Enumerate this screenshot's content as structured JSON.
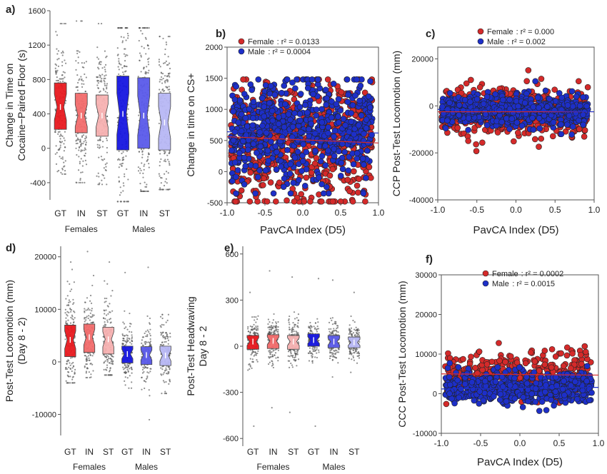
{
  "panel_labels": [
    "a)",
    "b)",
    "c)",
    "d)",
    "e)",
    "f)"
  ],
  "colors": {
    "GT_F": "#e8191f",
    "IN_F": "#f26b6b",
    "ST_F": "#f7b1b1",
    "GT_M": "#1616e0",
    "IN_M": "#5a5aea",
    "ST_M": "#b7b7f4",
    "female_dot": "#d42a2a",
    "male_dot": "#1d2fc8",
    "jitter": "#555555"
  },
  "chart_data": [
    {
      "id": "a",
      "type": "box",
      "ylabel_lines": [
        "Change in Time on",
        "Cocaine−Paired Floor (s)"
      ],
      "ylim": [
        -600,
        1600
      ],
      "yticks": [
        -400,
        0,
        400,
        800,
        1200,
        1600
      ],
      "categories": [
        "GT",
        "IN",
        "ST",
        "GT",
        "IN",
        "ST"
      ],
      "groups": [
        "Females",
        "Males"
      ],
      "boxes": [
        {
          "group": "Females",
          "phenotype": "GT",
          "color_key": "GT_F",
          "q1": 220,
          "median": 480,
          "q3": 760,
          "low": -300,
          "high": 1450,
          "n": 180
        },
        {
          "group": "Females",
          "phenotype": "IN",
          "color_key": "IN_F",
          "q1": 180,
          "median": 380,
          "q3": 640,
          "low": -400,
          "high": 1480,
          "n": 180
        },
        {
          "group": "Females",
          "phenotype": "ST",
          "color_key": "ST_F",
          "q1": 140,
          "median": 380,
          "q3": 620,
          "low": -420,
          "high": 1450,
          "n": 180
        },
        {
          "group": "Males",
          "phenotype": "GT",
          "color_key": "GT_M",
          "q1": -20,
          "median": 400,
          "q3": 840,
          "low": -620,
          "high": 1400,
          "n": 180
        },
        {
          "group": "Males",
          "phenotype": "IN",
          "color_key": "IN_M",
          "q1": 0,
          "median": 380,
          "q3": 820,
          "low": -500,
          "high": 1400,
          "n": 180
        },
        {
          "group": "Males",
          "phenotype": "ST",
          "color_key": "ST_M",
          "q1": -20,
          "median": 300,
          "q3": 640,
          "low": -480,
          "high": 1300,
          "n": 180
        }
      ]
    },
    {
      "id": "b",
      "type": "scatter",
      "xlabel": "PavCA Index (D5)",
      "ylabel": "Change in time on CS+",
      "xlim": [
        -1.0,
        1.0
      ],
      "ylim": [
        -500,
        2000
      ],
      "xticks": [
        -1.0,
        -0.5,
        0.0,
        0.5,
        1.0
      ],
      "xtick_labels": [
        "-1.0",
        "-0.5",
        "0.0",
        "0.5",
        "1.0"
      ],
      "yticks": [
        -500,
        0,
        500,
        1000,
        1500,
        2000
      ],
      "legend": [
        {
          "name": "Female",
          "r2_text": "r² = 0.0133",
          "color_key": "female_dot"
        },
        {
          "name": "Male",
          "r2_text": "r² = 0.0004",
          "color_key": "male_dot"
        }
      ],
      "legend_position": "top-left",
      "series": [
        {
          "name": "Female",
          "color_key": "female_dot",
          "n": 620,
          "y_center": 450,
          "y_spread": 900,
          "y_min": -480,
          "y_max": 1480,
          "fit": [
            [
              -1.0,
              560
            ],
            [
              1.0,
              460
            ]
          ]
        },
        {
          "name": "Male",
          "color_key": "male_dot",
          "n": 640,
          "y_center": 640,
          "y_spread": 760,
          "y_min": -350,
          "y_max": 1480,
          "fit": [
            [
              -1.0,
              640
            ],
            [
              1.0,
              620
            ]
          ]
        }
      ]
    },
    {
      "id": "c",
      "type": "scatter",
      "xlabel": "PavCA Index (D5)",
      "ylabel": "CCP Post-Test Locomotion (mm)",
      "xlim": [
        -1.0,
        1.0
      ],
      "ylim": [
        -40000,
        25000
      ],
      "xticks": [
        -1.0,
        -0.5,
        0.0,
        0.5,
        1.0
      ],
      "xtick_labels": [
        "-1.0",
        "-0.5",
        "0.0",
        "0.5",
        "1.0"
      ],
      "yticks": [
        -40000,
        -20000,
        0,
        20000
      ],
      "ytick_labels": [
        "-40000",
        "-20000",
        "0",
        "20000"
      ],
      "legend": [
        {
          "name": "Female",
          "r2_text": "r² = 0.000",
          "color_key": "female_dot"
        },
        {
          "name": "Male",
          "r2_text": "r² = 0.002",
          "color_key": "male_dot"
        }
      ],
      "legend_position": "top-left",
      "series": [
        {
          "name": "Female",
          "color_key": "female_dot",
          "n": 560,
          "y_center": -2500,
          "y_spread": 9000,
          "y_min": -36000,
          "y_max": 18000,
          "fit": [
            [
              -1.0,
              -2500
            ],
            [
              1.0,
              -2500
            ]
          ]
        },
        {
          "name": "Male",
          "color_key": "male_dot",
          "n": 620,
          "y_center": -2000,
          "y_spread": 6000,
          "y_min": -24000,
          "y_max": 17000,
          "fit": [
            [
              -1.0,
              -1500
            ],
            [
              1.0,
              -2500
            ]
          ]
        }
      ]
    },
    {
      "id": "d",
      "type": "box",
      "ylabel_lines": [
        "Post-Test Locomotion (mm)",
        "(Day 8 - 2)"
      ],
      "ylim": [
        -14000,
        22000
      ],
      "yticks": [
        -10000,
        0,
        10000,
        20000
      ],
      "categories": [
        "GT",
        "IN",
        "ST",
        "GT",
        "IN",
        "ST"
      ],
      "groups": [
        "Females",
        "Males"
      ],
      "boxes": [
        {
          "group": "Females",
          "phenotype": "GT",
          "color_key": "GT_F",
          "q1": 1000,
          "median": 4200,
          "q3": 7000,
          "low": -4000,
          "high": 19000,
          "n": 160
        },
        {
          "group": "Females",
          "phenotype": "IN",
          "color_key": "IN_F",
          "q1": 1800,
          "median": 4700,
          "q3": 7200,
          "low": -3000,
          "high": 21000,
          "n": 160
        },
        {
          "group": "Females",
          "phenotype": "ST",
          "color_key": "ST_F",
          "q1": 1500,
          "median": 4300,
          "q3": 6600,
          "low": -2500,
          "high": 19000,
          "n": 160
        },
        {
          "group": "Males",
          "phenotype": "GT",
          "color_key": "GT_M",
          "q1": -200,
          "median": 1500,
          "q3": 3000,
          "low": -5000,
          "high": 17000,
          "n": 140
        },
        {
          "group": "Males",
          "phenotype": "IN",
          "color_key": "IN_M",
          "q1": -500,
          "median": 1300,
          "q3": 2900,
          "low": -11000,
          "high": 18000,
          "n": 140
        },
        {
          "group": "Males",
          "phenotype": "ST",
          "color_key": "ST_M",
          "q1": -700,
          "median": 1200,
          "q3": 3000,
          "low": -6000,
          "high": 9000,
          "n": 140
        }
      ]
    },
    {
      "id": "e",
      "type": "box",
      "ylabel_lines": [
        "Post-Test Headwaving",
        "Day 8 - 2"
      ],
      "ylim": [
        -650,
        650
      ],
      "yticks": [
        -600,
        -300,
        0,
        300,
        600
      ],
      "categories": [
        "GT",
        "IN",
        "ST",
        "GT",
        "IN",
        "ST"
      ],
      "groups": [
        "Females",
        "Males"
      ],
      "boxes": [
        {
          "group": "Females",
          "phenotype": "GT",
          "color_key": "GT_F",
          "q1": -20,
          "median": 30,
          "q3": 70,
          "low": -520,
          "high": 350,
          "n": 170
        },
        {
          "group": "Females",
          "phenotype": "IN",
          "color_key": "IN_F",
          "q1": -15,
          "median": 35,
          "q3": 75,
          "low": -400,
          "high": 490,
          "n": 170
        },
        {
          "group": "Females",
          "phenotype": "ST",
          "color_key": "ST_F",
          "q1": -20,
          "median": 30,
          "q3": 70,
          "low": -430,
          "high": 450,
          "n": 170
        },
        {
          "group": "Males",
          "phenotype": "GT",
          "color_key": "GT_M",
          "q1": 0,
          "median": 40,
          "q3": 80,
          "low": -520,
          "high": 440,
          "n": 150
        },
        {
          "group": "Males",
          "phenotype": "IN",
          "color_key": "IN_M",
          "q1": -10,
          "median": 30,
          "q3": 70,
          "low": -200,
          "high": 430,
          "n": 150
        },
        {
          "group": "Males",
          "phenotype": "ST",
          "color_key": "ST_M",
          "q1": -10,
          "median": 25,
          "q3": 60,
          "low": -170,
          "high": 350,
          "n": 150
        }
      ]
    },
    {
      "id": "f",
      "type": "scatter",
      "xlabel": "PavCA Index (D5)",
      "ylabel": "CCC Post-Test Locomotion (mm)",
      "xlim": [
        -1.0,
        1.0
      ],
      "ylim": [
        -10000,
        30000
      ],
      "xticks": [
        -1.0,
        -0.5,
        0.0,
        0.5,
        1.0
      ],
      "xtick_labels": [
        "-1.0",
        "-0.5",
        "0.0",
        "0.5",
        "1.0"
      ],
      "yticks": [
        -10000,
        0,
        10000,
        20000,
        30000
      ],
      "ytick_labels": [
        "-10000",
        "0",
        "10000",
        "20000",
        "30000"
      ],
      "legend": [
        {
          "name": "Female",
          "r2_text": "r² = 0.0002",
          "color_key": "female_dot"
        },
        {
          "name": "Male",
          "r2_text": "r² = 0.0015",
          "color_key": "male_dot"
        }
      ],
      "legend_position": "top-left",
      "series": [
        {
          "name": "Female",
          "color_key": "female_dot",
          "n": 380,
          "y_center": 4800,
          "y_spread": 5200,
          "y_min": -7000,
          "y_max": 21000,
          "fit": [
            [
              -1.0,
              5000
            ],
            [
              1.0,
              4700
            ]
          ]
        },
        {
          "name": "Male",
          "color_key": "male_dot",
          "n": 480,
          "y_center": 1500,
          "y_spread": 3800,
          "y_min": -8000,
          "y_max": 15000,
          "fit": [
            [
              -1.0,
              1200
            ],
            [
              1.0,
              1600
            ]
          ]
        }
      ]
    }
  ]
}
